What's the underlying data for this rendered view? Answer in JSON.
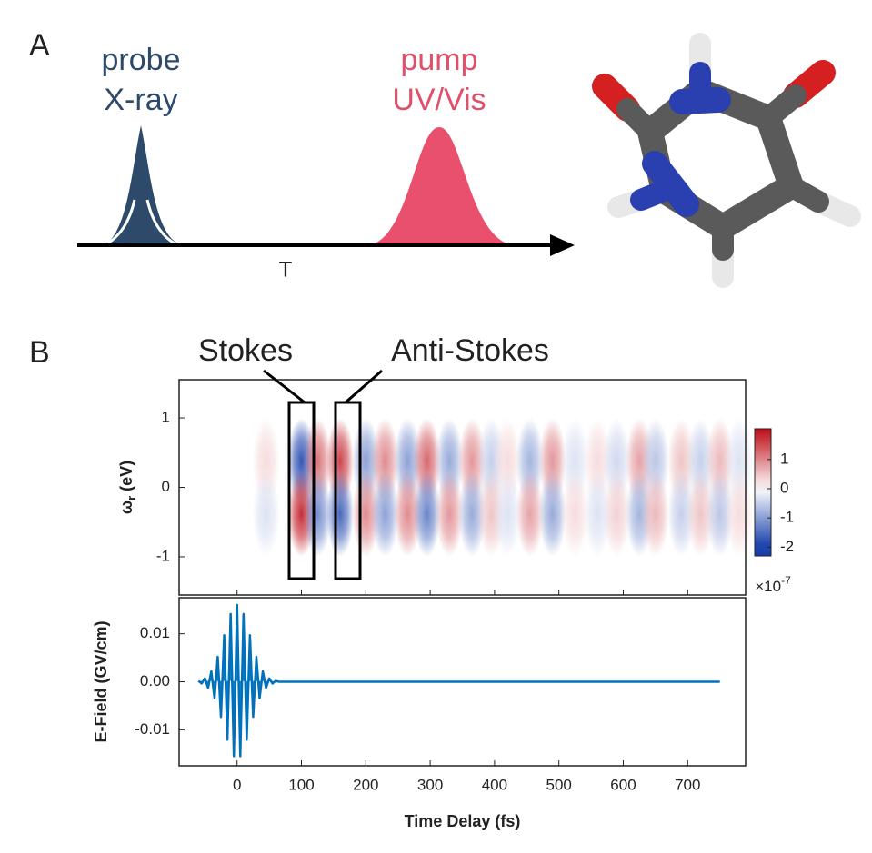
{
  "panel_a": {
    "label": "A",
    "probe_label": "probe",
    "probe_type": "X-ray",
    "pump_label": "pump",
    "pump_type": "UV/Vis",
    "delay_label": "T"
  },
  "panel_b": {
    "label": "B",
    "annotations": [
      "Stokes",
      "Anti-Stokes"
    ]
  },
  "chart_data": [
    {
      "type": "heatmap",
      "x": [
        45,
        100,
        125,
        160,
        200,
        230,
        265,
        295,
        330,
        365,
        395,
        420,
        455,
        490,
        525,
        560,
        590,
        625,
        650,
        690,
        720,
        750,
        780
      ],
      "y": [
        0.38,
        -0.38
      ],
      "z": [
        [
          0.3,
          -1.8,
          1.2,
          1.6,
          -1.0,
          1.0,
          -1.0,
          1.3,
          -0.9,
          0.9,
          -0.5,
          0.3,
          -0.8,
          0.9,
          -0.3,
          0.3,
          -0.4,
          0.8,
          -0.6,
          0.5,
          -0.5,
          0.6,
          -0.3
        ],
        [
          -0.3,
          1.8,
          -1.2,
          -1.6,
          1.0,
          -1.0,
          1.0,
          -1.3,
          0.9,
          -0.9,
          0.5,
          -0.3,
          0.8,
          -0.9,
          0.3,
          -0.3,
          0.4,
          -0.8,
          0.6,
          -0.5,
          0.5,
          -0.6,
          0.3
        ]
      ],
      "xlim": [
        -90,
        790
      ],
      "ylim": [
        -1.55,
        1.55
      ],
      "yticks": [
        -1,
        0,
        1
      ],
      "ylabel": "ω",
      "ylabel_subscript": "r",
      "ylabel_unit": "(eV)",
      "colorbar": {
        "clim": [
          -2.3,
          2.05
        ],
        "ticks": [
          -2,
          -1,
          0,
          1
        ],
        "multiplier": "×10",
        "exponent": "-7"
      }
    },
    {
      "type": "line",
      "x": [
        -60,
        -55,
        -50,
        -45,
        -40,
        -35,
        -30,
        -25,
        -20,
        -15,
        -10,
        -5,
        0,
        5,
        10,
        15,
        20,
        25,
        30,
        35,
        40,
        45,
        50,
        55,
        60,
        65,
        750
      ],
      "series": [
        {
          "color": "#0072bd",
          "values": [
            0.00018,
            -0.00036,
            0.0007,
            -0.00127,
            0.00217,
            -0.00346,
            0.0052,
            -0.00733,
            0.0097,
            -0.01208,
            0.01412,
            -0.0155,
            0.016,
            -0.0155,
            0.01412,
            -0.01208,
            0.0097,
            -0.00733,
            0.0052,
            -0.00346,
            0.00217,
            -0.00127,
            0.0007,
            -0.00036,
            0.00018,
            0,
            0
          ]
        }
      ],
      "xlim": [
        -90,
        790
      ],
      "ylim": [
        -0.0175,
        0.0175
      ],
      "xticks": [
        0,
        100,
        200,
        300,
        400,
        500,
        600,
        700
      ],
      "yticks": [
        -0.01,
        {
          "value": 0,
          "label": "0.00"
        },
        0.01
      ],
      "xlabel": "Time Delay (fs)",
      "ylabel": "E-Field (GV/cm)"
    }
  ]
}
